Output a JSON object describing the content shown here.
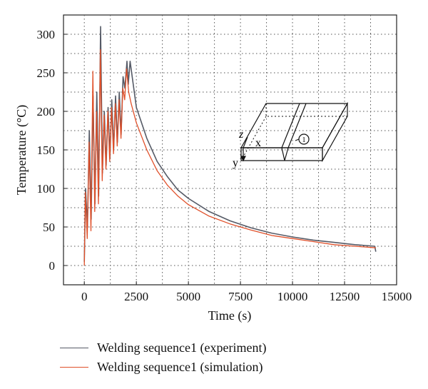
{
  "chart_data": {
    "type": "line",
    "xlabel": "Time (s)",
    "ylabel": "Temperature (°C)",
    "xlim": [
      -1000,
      15000
    ],
    "ylim": [
      -25,
      325
    ],
    "xticks": [
      0,
      2500,
      5000,
      7500,
      10000,
      12500,
      15000
    ],
    "yticks": [
      0,
      50,
      100,
      150,
      200,
      250,
      300
    ],
    "grid": "dotted",
    "legend_position": "below",
    "series": [
      {
        "name": "Welding sequence1 (experiment)",
        "color": "#555a66",
        "points": [
          [
            0,
            5
          ],
          [
            60,
            100
          ],
          [
            150,
            50
          ],
          [
            240,
            175
          ],
          [
            330,
            60
          ],
          [
            420,
            220
          ],
          [
            510,
            80
          ],
          [
            600,
            225
          ],
          [
            690,
            90
          ],
          [
            780,
            310
          ],
          [
            870,
            120
          ],
          [
            960,
            200
          ],
          [
            1050,
            130
          ],
          [
            1140,
            205
          ],
          [
            1230,
            140
          ],
          [
            1320,
            215
          ],
          [
            1410,
            150
          ],
          [
            1500,
            220
          ],
          [
            1590,
            160
          ],
          [
            1680,
            225
          ],
          [
            1770,
            170
          ],
          [
            1860,
            245
          ],
          [
            1950,
            230
          ],
          [
            2050,
            265
          ],
          [
            2110,
            235
          ],
          [
            2200,
            265
          ],
          [
            2300,
            245
          ],
          [
            2500,
            205
          ],
          [
            3000,
            165
          ],
          [
            3500,
            135
          ],
          [
            4000,
            115
          ],
          [
            4500,
            98
          ],
          [
            5000,
            87
          ],
          [
            6000,
            70
          ],
          [
            7000,
            58
          ],
          [
            8000,
            49
          ],
          [
            9000,
            42
          ],
          [
            10000,
            37
          ],
          [
            11000,
            33
          ],
          [
            12000,
            30
          ],
          [
            13000,
            27
          ],
          [
            13950,
            25
          ],
          [
            14000,
            18
          ]
        ]
      },
      {
        "name": "Welding sequence1 (simulation)",
        "color": "#e0502a",
        "points": [
          [
            0,
            0
          ],
          [
            50,
            95
          ],
          [
            140,
            35
          ],
          [
            230,
            160
          ],
          [
            320,
            45
          ],
          [
            410,
            252
          ],
          [
            500,
            70
          ],
          [
            590,
            200
          ],
          [
            680,
            80
          ],
          [
            770,
            280
          ],
          [
            860,
            110
          ],
          [
            950,
            195
          ],
          [
            1040,
            125
          ],
          [
            1130,
            200
          ],
          [
            1220,
            135
          ],
          [
            1310,
            205
          ],
          [
            1400,
            145
          ],
          [
            1490,
            210
          ],
          [
            1580,
            155
          ],
          [
            1670,
            215
          ],
          [
            1760,
            165
          ],
          [
            1850,
            230
          ],
          [
            1940,
            215
          ],
          [
            2030,
            255
          ],
          [
            2130,
            225
          ],
          [
            2250,
            210
          ],
          [
            2500,
            185
          ],
          [
            3000,
            150
          ],
          [
            3500,
            123
          ],
          [
            4000,
            104
          ],
          [
            4500,
            90
          ],
          [
            5000,
            79
          ],
          [
            6000,
            64
          ],
          [
            7000,
            54
          ],
          [
            8000,
            46
          ],
          [
            9000,
            39
          ],
          [
            10000,
            35
          ],
          [
            11000,
            31
          ],
          [
            12000,
            27
          ],
          [
            13000,
            25
          ],
          [
            14000,
            23
          ]
        ]
      }
    ]
  },
  "inset": {
    "axis_z": "z",
    "axis_x": "x",
    "axis_y": "y",
    "marker": "1"
  }
}
